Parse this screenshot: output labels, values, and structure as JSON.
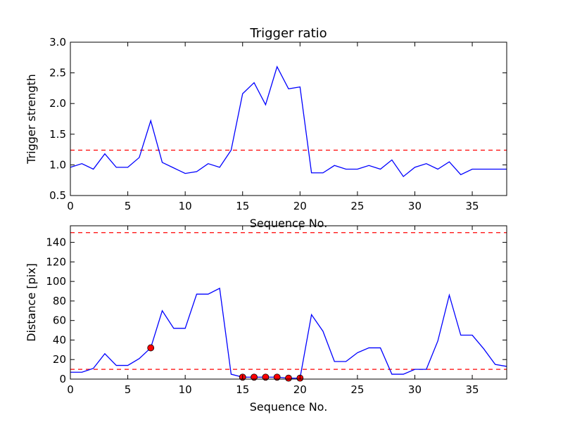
{
  "colors": {
    "line": "#0000ff",
    "threshold": "#ff0000",
    "marker_fill": "#ff0000",
    "marker_edge": "#000000",
    "axes": "#000000",
    "background": "#ffffff"
  },
  "chart_data": [
    {
      "type": "line",
      "title": "Trigger ratio",
      "xlabel": "Sequence No.",
      "ylabel": "Trigger strength",
      "xlim": [
        0,
        38
      ],
      "ylim": [
        0.5,
        3.0
      ],
      "xticks": [
        0,
        5,
        10,
        15,
        20,
        25,
        30,
        35
      ],
      "yticks": [
        0.5,
        1.0,
        1.5,
        2.0,
        2.5,
        3.0
      ],
      "ytick_labels": [
        "0.5",
        "1.0",
        "1.5",
        "2.0",
        "2.5",
        "3.0"
      ],
      "grid": false,
      "series": [
        {
          "x": [
            0,
            1,
            2,
            3,
            4,
            5,
            6,
            7,
            8,
            9,
            10,
            11,
            12,
            13,
            14,
            15,
            16,
            17,
            18,
            19,
            20,
            21,
            22,
            23,
            24,
            25,
            26,
            27,
            28,
            29,
            30,
            31,
            32,
            33,
            34,
            35,
            36,
            37,
            38
          ],
          "values": [
            0.96,
            1.02,
            0.93,
            1.18,
            0.96,
            0.96,
            1.12,
            1.72,
            1.04,
            0.95,
            0.86,
            0.89,
            1.02,
            0.96,
            1.24,
            2.16,
            2.34,
            1.98,
            2.6,
            2.24,
            2.27,
            0.87,
            0.87,
            0.99,
            0.93,
            0.93,
            0.99,
            0.93,
            1.08,
            0.81,
            0.96,
            1.02,
            0.93,
            1.05,
            0.84,
            0.93,
            0.93,
            0.93,
            0.93
          ]
        }
      ],
      "thresholds": [
        1.24
      ]
    },
    {
      "type": "line",
      "title": "",
      "xlabel": "Sequence No.",
      "ylabel": "Distance [pix]",
      "xlim": [
        0,
        38
      ],
      "ylim": [
        0,
        157
      ],
      "xticks": [
        0,
        5,
        10,
        15,
        20,
        25,
        30,
        35
      ],
      "yticks": [
        0,
        20,
        40,
        60,
        80,
        100,
        120,
        140
      ],
      "ytick_labels": [
        "0",
        "20",
        "40",
        "60",
        "80",
        "100",
        "120",
        "140"
      ],
      "grid": false,
      "series": [
        {
          "x": [
            0,
            1,
            2,
            3,
            4,
            5,
            6,
            7,
            8,
            9,
            10,
            11,
            12,
            13,
            14,
            15,
            16,
            17,
            18,
            19,
            20,
            21,
            22,
            23,
            24,
            25,
            26,
            27,
            28,
            29,
            30,
            31,
            32,
            33,
            34,
            35,
            36,
            37,
            38
          ],
          "values": [
            7,
            7,
            11,
            26,
            14,
            14,
            21,
            32,
            70,
            52,
            52,
            87,
            87,
            93,
            5,
            2,
            2,
            2,
            2,
            1,
            1,
            66,
            49,
            18,
            18,
            27,
            32,
            32,
            5,
            5,
            10,
            10,
            39,
            86,
            45,
            45,
            31,
            15,
            13
          ]
        }
      ],
      "markers": [
        {
          "x": 7,
          "y": 32
        },
        {
          "x": 15,
          "y": 2
        },
        {
          "x": 16,
          "y": 2
        },
        {
          "x": 17,
          "y": 2
        },
        {
          "x": 18,
          "y": 2
        },
        {
          "x": 19,
          "y": 1
        },
        {
          "x": 20,
          "y": 1
        }
      ],
      "thresholds": [
        150,
        10
      ]
    }
  ]
}
